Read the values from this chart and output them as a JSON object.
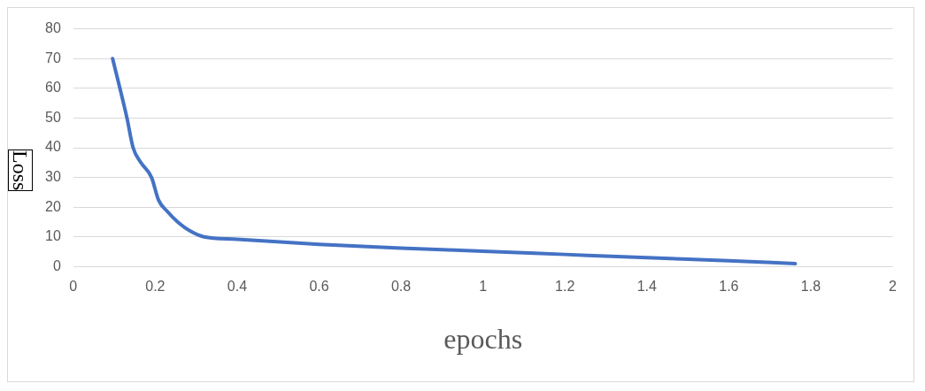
{
  "chart_data": {
    "type": "line",
    "xlabel": "epochs",
    "ylabel": "Loss",
    "x": [
      0.096,
      0.131,
      0.146,
      0.165,
      0.191,
      0.208,
      0.23,
      0.255,
      0.285,
      0.319,
      0.4,
      0.6,
      0.8,
      1.0,
      1.2,
      1.4,
      1.6,
      1.762
    ],
    "series": [
      {
        "color": "#4472c4",
        "values": [
          70,
          50,
          40,
          35,
          30,
          22.4,
          18.5,
          15,
          12,
          10,
          9.2,
          7.5,
          6.2,
          5.2,
          4.1,
          3,
          2,
          1
        ]
      }
    ],
    "xlim": [
      0,
      2
    ],
    "xticks": [
      0,
      0.2,
      0.4,
      0.6,
      0.8,
      1,
      1.2,
      1.4,
      1.6,
      1.8,
      2
    ],
    "ylim": [
      0,
      80
    ],
    "yticks": [
      0,
      10,
      20,
      30,
      40,
      50,
      60,
      70,
      80
    ],
    "grid": "y",
    "legend": false,
    "marker": "none",
    "line_style": "solid"
  }
}
